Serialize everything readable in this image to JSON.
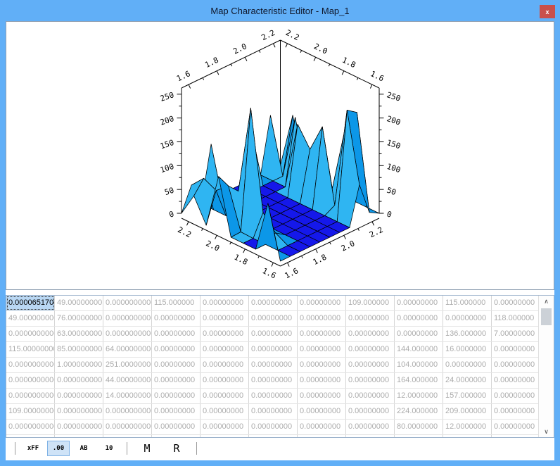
{
  "window": {
    "title": "Map Characteristic Editor - Map_1",
    "close_label": "x"
  },
  "chart_data": {
    "type": "heatmap",
    "note": "3D wireframe surface plot of the map values below",
    "x_ticks": [
      "1.6",
      "1.8",
      "2.0",
      "2.2"
    ],
    "y_ticks": [
      "1.6",
      "1.8",
      "2.0",
      "2.2"
    ],
    "z_ticks": [
      0,
      50,
      100,
      150,
      200,
      250
    ],
    "x_range": [
      1.55,
      2.25
    ],
    "y_range": [
      1.55,
      2.25
    ],
    "z_range": [
      0,
      263
    ],
    "values": [
      [
        6.51701e-05,
        49,
        0,
        115,
        0,
        0,
        0,
        109,
        0,
        115,
        0
      ],
      [
        49,
        76,
        0,
        0,
        0,
        0,
        0,
        0,
        0,
        0,
        118
      ],
      [
        0,
        63,
        0,
        0,
        0,
        0,
        0,
        0,
        0,
        136,
        7
      ],
      [
        115,
        85,
        64,
        0,
        0,
        0,
        0,
        0,
        144,
        16,
        0
      ],
      [
        0,
        1,
        251,
        0,
        0,
        0,
        0,
        0,
        104,
        0,
        0
      ],
      [
        0,
        0,
        44,
        0,
        0,
        0,
        0,
        0,
        164,
        24,
        0
      ],
      [
        0,
        0,
        14,
        0,
        0,
        0,
        0,
        0,
        12,
        157,
        0
      ],
      [
        109,
        0,
        0,
        0,
        0,
        0,
        0,
        0,
        224,
        209,
        0
      ],
      [
        0,
        0,
        0,
        0,
        0,
        0,
        0,
        0,
        80,
        12,
        0
      ]
    ],
    "colors": {
      "flat": "#1518ea",
      "face_light": "#2fb5f2",
      "face_dark": "#0c97e8",
      "edge": "#000000"
    }
  },
  "table": {
    "selected": {
      "row": 0,
      "col": 0
    },
    "rows": [
      [
        "0.0000651701",
        "49.00000000",
        "0.0000000000",
        "115.000000",
        "0.00000000",
        "0.00000000",
        "0.00000000",
        "109.000000",
        "0.00000000",
        "115.000000",
        "0.00000000"
      ],
      [
        "49.000000000",
        "76.00000000",
        "0.0000000000",
        "0.00000000",
        "0.00000000",
        "0.00000000",
        "0.00000000",
        "0.00000000",
        "0.00000000",
        "0.00000000",
        "118.000000"
      ],
      [
        "0.0000000000",
        "63.00000000",
        "0.0000000000",
        "0.00000000",
        "0.00000000",
        "0.00000000",
        "0.00000000",
        "0.00000000",
        "0.00000000",
        "136.000000",
        "7.00000000"
      ],
      [
        "115.00000000",
        "85.00000000",
        "64.000000000",
        "0.00000000",
        "0.00000000",
        "0.00000000",
        "0.00000000",
        "0.00000000",
        "144.000000",
        "16.0000000",
        "0.00000000"
      ],
      [
        "0.0000000000",
        "1.000000000",
        "251.00000000",
        "0.00000000",
        "0.00000000",
        "0.00000000",
        "0.00000000",
        "0.00000000",
        "104.000000",
        "0.00000000",
        "0.00000000"
      ],
      [
        "0.0000000000",
        "0.000000000",
        "44.000000000",
        "0.00000000",
        "0.00000000",
        "0.00000000",
        "0.00000000",
        "0.00000000",
        "164.000000",
        "24.0000000",
        "0.00000000"
      ],
      [
        "0.0000000000",
        "0.000000000",
        "14.000000000",
        "0.00000000",
        "0.00000000",
        "0.00000000",
        "0.00000000",
        "0.00000000",
        "12.0000000",
        "157.000000",
        "0.00000000"
      ],
      [
        "109.00000000",
        "0.000000000",
        "0.0000000000",
        "0.00000000",
        "0.00000000",
        "0.00000000",
        "0.00000000",
        "0.00000000",
        "224.000000",
        "209.000000",
        "0.00000000"
      ],
      [
        "0.0000000000",
        "0.000000000",
        "0.0000000000",
        "0.00000000",
        "0.00000000",
        "0.00000000",
        "0.00000000",
        "0.00000000",
        "80.0000000",
        "12.0000000",
        "0.00000000"
      ]
    ]
  },
  "scrollbar": {
    "up": "∧",
    "down": "∨"
  },
  "toolbar": {
    "groups": [
      [
        {
          "label": "xFF"
        },
        {
          "label": ".00",
          "active": true
        },
        {
          "label": "AB"
        },
        {
          "label": "10"
        }
      ],
      [
        {
          "label": "M",
          "large": true
        },
        {
          "label": "R",
          "large": true
        }
      ]
    ]
  }
}
